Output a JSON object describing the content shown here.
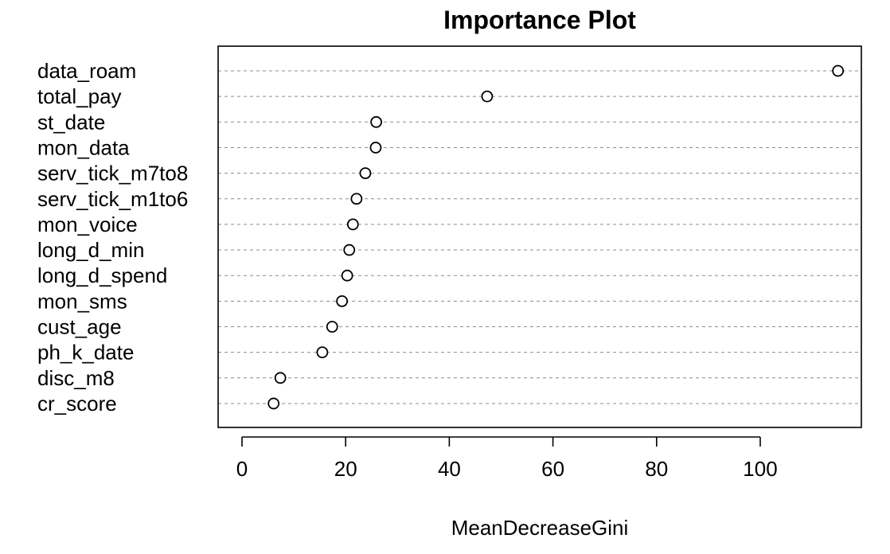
{
  "chart_data": {
    "type": "scatter",
    "title": "Importance Plot",
    "xlabel": "MeanDecreaseGini",
    "ylabel": "",
    "xlim": [
      0,
      110
    ],
    "xticks": [
      0,
      20,
      40,
      60,
      80,
      100
    ],
    "grid": "horizontal dotted",
    "categories": [
      "data_roam",
      "total_pay",
      "st_date",
      "mon_data",
      "serv_tick_m7to8",
      "serv_tick_m1to6",
      "mon_voice",
      "long_d_min",
      "long_d_spend",
      "mon_sms",
      "cust_age",
      "ph_k_date",
      "disc_m8",
      "cr_score"
    ],
    "values": [
      115.0,
      47.3,
      25.9,
      25.8,
      23.8,
      22.1,
      21.4,
      20.7,
      20.3,
      19.3,
      17.4,
      15.5,
      7.4,
      6.1
    ]
  }
}
